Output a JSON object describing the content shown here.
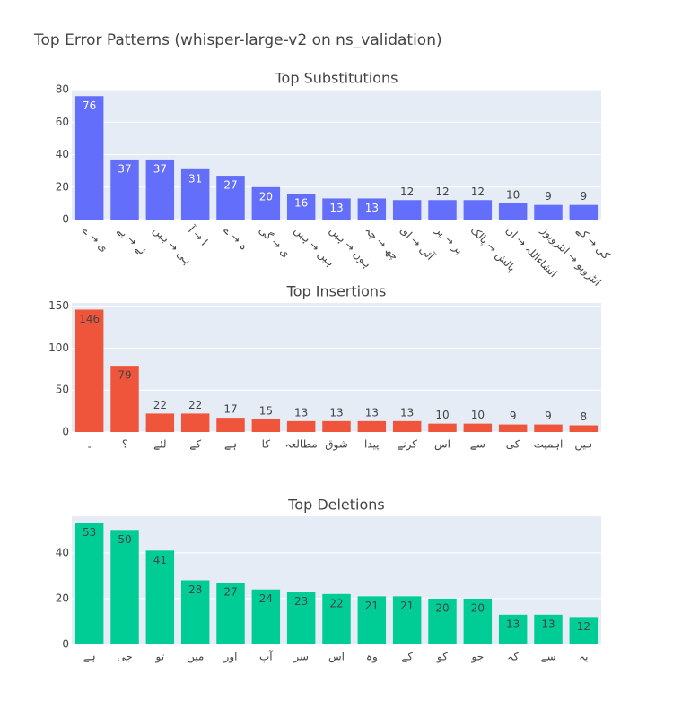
{
  "title": "Top Error Patterns (whisper-large-v2 on ns_validation)",
  "chart_data": [
    {
      "type": "bar",
      "title": "Top Substitutions",
      "color": "#636efa",
      "grid": true,
      "categories": [
        "ی → ے",
        "ئے → یے",
        "ہی → ہیں",
        "ا → آ",
        "ہ → ے",
        "ی → گی",
        "ہیں → ہیں",
        "ہوں → ہیں",
        "چھ → چہ",
        "آئی → ای",
        "بر → پر",
        "پالش → پالک",
        "انشاءاللہ → ان",
        "انٹرویو → انٹرویوز",
        "کی → کے"
      ],
      "values": [
        76,
        37,
        37,
        31,
        27,
        20,
        16,
        13,
        13,
        12,
        12,
        12,
        10,
        9,
        9
      ],
      "ylim": [
        0,
        80
      ],
      "yticks": [
        0,
        20,
        40,
        60,
        80
      ],
      "label_rotate": true
    },
    {
      "type": "bar",
      "title": "Top Insertions",
      "color": "#ef553b",
      "grid": true,
      "categories": [
        "۔",
        "؟",
        "لئے",
        "کے",
        "ہے",
        "کا",
        "مطالعہ",
        "شوق",
        "پیدا",
        "کرنے",
        "اس",
        "سے",
        "کی",
        "اہمیت",
        "ہیں"
      ],
      "values": [
        146,
        79,
        22,
        22,
        17,
        15,
        13,
        13,
        13,
        13,
        10,
        10,
        9,
        9,
        8
      ],
      "ylim": [
        0,
        154
      ],
      "yticks": [
        0,
        50,
        100,
        150
      ]
    },
    {
      "type": "bar",
      "title": "Top Deletions",
      "color": "#00cc96",
      "grid": true,
      "categories": [
        "ہے",
        "جی",
        "تو",
        "میں",
        "اور",
        "آپ",
        "سر",
        "اس",
        "وہ",
        "کے",
        "کو",
        "جو",
        "کہ",
        "سے",
        "یہ"
      ],
      "values": [
        53,
        50,
        41,
        28,
        27,
        24,
        23,
        22,
        21,
        21,
        20,
        20,
        13,
        13,
        12
      ],
      "ylim": [
        0,
        56
      ],
      "yticks": [
        0,
        20,
        40
      ]
    }
  ]
}
